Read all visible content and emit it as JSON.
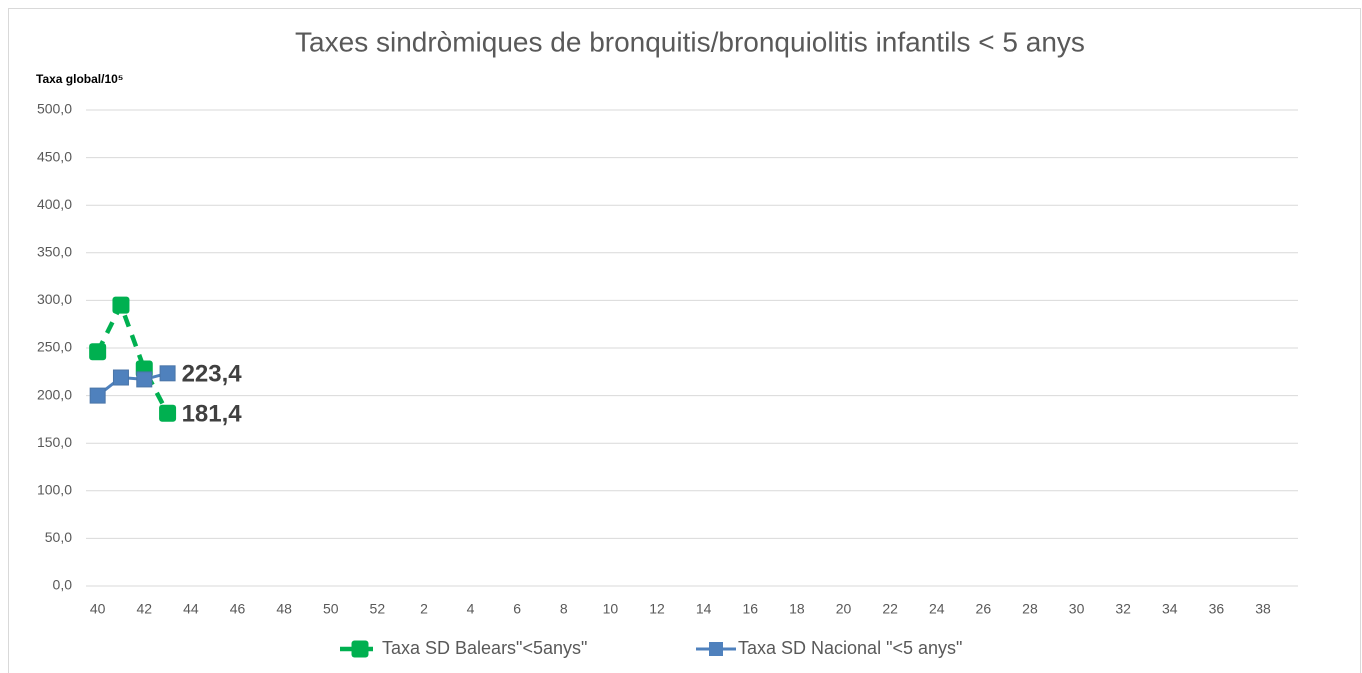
{
  "chart_data": {
    "type": "line",
    "title": "Taxes sindròmiques de bronquitis/bronquiolitis infantils < 5 anys",
    "y_label": "Taxa global/10⁵",
    "categories": [
      40,
      null,
      42,
      null,
      44,
      null,
      46,
      null,
      48,
      null,
      50,
      null,
      52,
      null,
      2,
      null,
      4,
      null,
      6,
      null,
      8,
      null,
      10,
      null,
      12,
      null,
      14,
      null,
      16,
      null,
      18,
      null,
      20,
      null,
      22,
      null,
      24,
      null,
      26,
      null,
      28,
      null,
      30,
      null,
      32,
      null,
      34,
      null,
      36,
      null,
      38,
      null
    ],
    "series": [
      {
        "name": "Taxa SD Balears\"<5anys\"",
        "color": "#00b050",
        "dashed": true,
        "values": [
          246,
          295,
          228,
          181.4,
          null,
          null,
          null,
          null,
          null,
          null,
          null,
          null,
          null,
          null,
          null,
          null,
          null,
          null,
          null,
          null,
          null,
          null,
          null,
          null,
          null,
          null,
          null,
          null,
          null,
          null,
          null,
          null,
          null,
          null,
          null,
          null,
          null,
          null,
          null,
          null,
          null,
          null,
          null,
          null,
          null,
          null,
          null,
          null,
          null,
          null,
          null,
          null
        ],
        "value_labels": [
          null,
          null,
          null,
          "181,4",
          null,
          null,
          null,
          null,
          null,
          null,
          null,
          null,
          null,
          null,
          null,
          null,
          null,
          null,
          null,
          null,
          null,
          null,
          null,
          null,
          null,
          null,
          null,
          null,
          null,
          null,
          null,
          null,
          null,
          null,
          null,
          null,
          null,
          null,
          null,
          null,
          null,
          null,
          null,
          null,
          null,
          null,
          null,
          null,
          null,
          null,
          null,
          null
        ]
      },
      {
        "name": "Taxa SD Nacional \"<5 anys\"",
        "color": "#4f81bd",
        "dashed": false,
        "values": [
          200,
          219,
          217,
          223.4,
          null,
          null,
          null,
          null,
          null,
          null,
          null,
          null,
          null,
          null,
          null,
          null,
          null,
          null,
          null,
          null,
          null,
          null,
          null,
          null,
          null,
          null,
          null,
          null,
          null,
          null,
          null,
          null,
          null,
          null,
          null,
          null,
          null,
          null,
          null,
          null,
          null,
          null,
          null,
          null,
          null,
          null,
          null,
          null,
          null,
          null,
          null,
          null
        ],
        "value_labels": [
          null,
          null,
          null,
          "223,4",
          null,
          null,
          null,
          null,
          null,
          null,
          null,
          null,
          null,
          null,
          null,
          null,
          null,
          null,
          null,
          null,
          null,
          null,
          null,
          null,
          null,
          null,
          null,
          null,
          null,
          null,
          null,
          null,
          null,
          null,
          null,
          null,
          null,
          null,
          null,
          null,
          null,
          null,
          null,
          null,
          null,
          null,
          null,
          null,
          null,
          null,
          null,
          null
        ]
      }
    ],
    "ylim": [
      0,
      500
    ],
    "yticks": [
      {
        "value": 0,
        "label": "0,0"
      },
      {
        "value": 50,
        "label": "50,0"
      },
      {
        "value": 100,
        "label": "100,0"
      },
      {
        "value": 150,
        "label": "150,0"
      },
      {
        "value": 200,
        "label": "200,0"
      },
      {
        "value": 250,
        "label": "250,0"
      },
      {
        "value": 300,
        "label": "300,0"
      },
      {
        "value": 350,
        "label": "350,0"
      },
      {
        "value": 400,
        "label": "400,0"
      },
      {
        "value": 450,
        "label": "450,0"
      },
      {
        "value": 500,
        "label": "500,0"
      }
    ],
    "grid": true,
    "legend": "bottom"
  }
}
